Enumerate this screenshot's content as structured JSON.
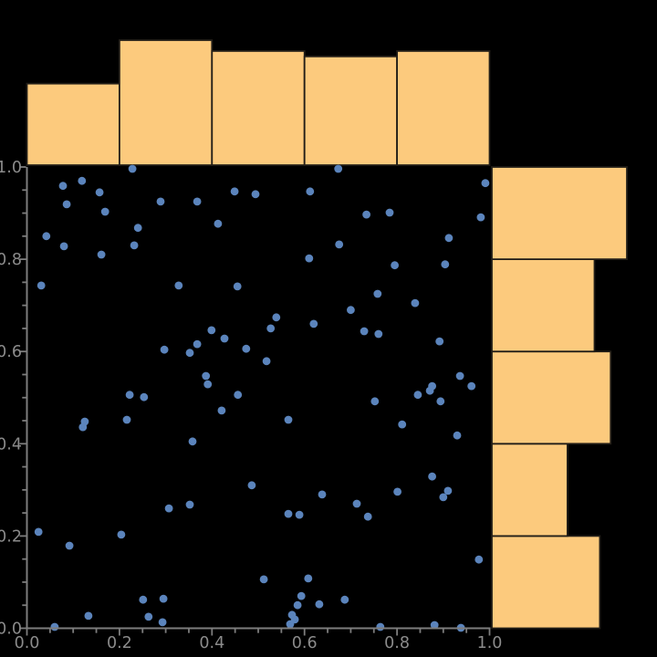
{
  "figure": {
    "background": "#000000",
    "kind": "jointplot (scatter with marginal histograms)"
  },
  "chart_data": {
    "type": "scatter",
    "subtype": "jointplot-with-marginal-histograms",
    "title": "",
    "xlabel": "",
    "ylabel": "",
    "xlim": [
      0.0,
      1.0
    ],
    "ylim": [
      0.0,
      1.0
    ],
    "grid": false,
    "legend": null,
    "x_tick_values": [
      0.0,
      0.2,
      0.4,
      0.6,
      0.8,
      1.0
    ],
    "x_tick_labels": [
      "0.0",
      "0.2",
      "0.4",
      "0.6",
      "0.8",
      "1.0"
    ],
    "y_tick_values": [
      0.0,
      0.2,
      0.4,
      0.6,
      0.8,
      1.0
    ],
    "y_tick_labels": [
      "0.0",
      "0.2",
      "0.4",
      "0.6",
      "0.8",
      "1.0"
    ],
    "minor_tick_step": 0.05,
    "points": [
      [
        0.228,
        0.996
      ],
      [
        0.119,
        0.97
      ],
      [
        0.078,
        0.959
      ],
      [
        0.157,
        0.945
      ],
      [
        0.449,
        0.947
      ],
      [
        0.494,
        0.941
      ],
      [
        0.289,
        0.925
      ],
      [
        0.368,
        0.925
      ],
      [
        0.086,
        0.919
      ],
      [
        0.169,
        0.903
      ],
      [
        0.413,
        0.877
      ],
      [
        0.24,
        0.868
      ],
      [
        0.042,
        0.85
      ],
      [
        0.08,
        0.828
      ],
      [
        0.232,
        0.83
      ],
      [
        0.161,
        0.81
      ],
      [
        0.328,
        0.743
      ],
      [
        0.455,
        0.741
      ],
      [
        0.031,
        0.743
      ],
      [
        0.399,
        0.646
      ],
      [
        0.427,
        0.628
      ],
      [
        0.368,
        0.616
      ],
      [
        0.297,
        0.604
      ],
      [
        0.352,
        0.597
      ],
      [
        0.474,
        0.606
      ],
      [
        0.387,
        0.547
      ],
      [
        0.391,
        0.529
      ],
      [
        0.222,
        0.506
      ],
      [
        0.253,
        0.501
      ],
      [
        0.456,
        0.506
      ],
      [
        0.673,
        0.996
      ],
      [
        0.991,
        0.965
      ],
      [
        0.612,
        0.947
      ],
      [
        0.734,
        0.897
      ],
      [
        0.784,
        0.901
      ],
      [
        0.981,
        0.891
      ],
      [
        0.912,
        0.846
      ],
      [
        0.675,
        0.832
      ],
      [
        0.61,
        0.802
      ],
      [
        0.795,
        0.787
      ],
      [
        0.904,
        0.789
      ],
      [
        0.758,
        0.725
      ],
      [
        0.839,
        0.705
      ],
      [
        0.539,
        0.674
      ],
      [
        0.527,
        0.65
      ],
      [
        0.62,
        0.66
      ],
      [
        0.729,
        0.644
      ],
      [
        0.76,
        0.638
      ],
      [
        0.892,
        0.622
      ],
      [
        0.518,
        0.579
      ],
      [
        0.936,
        0.547
      ],
      [
        0.876,
        0.525
      ],
      [
        0.871,
        0.515
      ],
      [
        0.845,
        0.506
      ],
      [
        0.961,
        0.525
      ],
      [
        0.7,
        0.69
      ],
      [
        0.421,
        0.472
      ],
      [
        0.216,
        0.452
      ],
      [
        0.125,
        0.448
      ],
      [
        0.121,
        0.436
      ],
      [
        0.358,
        0.405
      ],
      [
        0.486,
        0.31
      ],
      [
        0.307,
        0.26
      ],
      [
        0.352,
        0.268
      ],
      [
        0.025,
        0.209
      ],
      [
        0.204,
        0.203
      ],
      [
        0.092,
        0.179
      ],
      [
        0.251,
        0.062
      ],
      [
        0.295,
        0.064
      ],
      [
        0.263,
        0.025
      ],
      [
        0.293,
        0.013
      ],
      [
        0.133,
        0.027
      ],
      [
        0.06,
        0.003
      ],
      [
        0.752,
        0.492
      ],
      [
        0.894,
        0.492
      ],
      [
        0.565,
        0.452
      ],
      [
        0.811,
        0.442
      ],
      [
        0.93,
        0.418
      ],
      [
        0.876,
        0.329
      ],
      [
        0.801,
        0.296
      ],
      [
        0.91,
        0.298
      ],
      [
        0.9,
        0.284
      ],
      [
        0.638,
        0.29
      ],
      [
        0.713,
        0.27
      ],
      [
        0.565,
        0.248
      ],
      [
        0.589,
        0.246
      ],
      [
        0.737,
        0.242
      ],
      [
        0.977,
        0.149
      ],
      [
        0.512,
        0.106
      ],
      [
        0.608,
        0.108
      ],
      [
        0.593,
        0.07
      ],
      [
        0.585,
        0.05
      ],
      [
        0.632,
        0.052
      ],
      [
        0.687,
        0.062
      ],
      [
        0.573,
        0.029
      ],
      [
        0.579,
        0.019
      ],
      [
        0.569,
        0.009
      ],
      [
        0.764,
        0.003
      ],
      [
        0.881,
        0.007
      ],
      [
        0.938,
        0.001
      ]
    ],
    "marginal_x_histogram": {
      "orientation": "vertical",
      "bin_edges": [
        0.0,
        0.2,
        0.4,
        0.6,
        0.8,
        1.0
      ],
      "counts": [
        15,
        23,
        21,
        20,
        21
      ]
    },
    "marginal_y_histogram": {
      "orientation": "horizontal",
      "bin_edges": [
        0.0,
        0.2,
        0.4,
        0.6,
        0.8,
        1.0
      ],
      "counts": [
        20,
        14,
        22,
        19,
        25
      ]
    },
    "colors": {
      "scatter_point": "#5b84bc",
      "hist_fill": "#fcca7d",
      "hist_edge": "#221e18",
      "axis_line": "#7d7d7d",
      "tick_label": "#8b8b8b",
      "background": "#000000"
    }
  }
}
